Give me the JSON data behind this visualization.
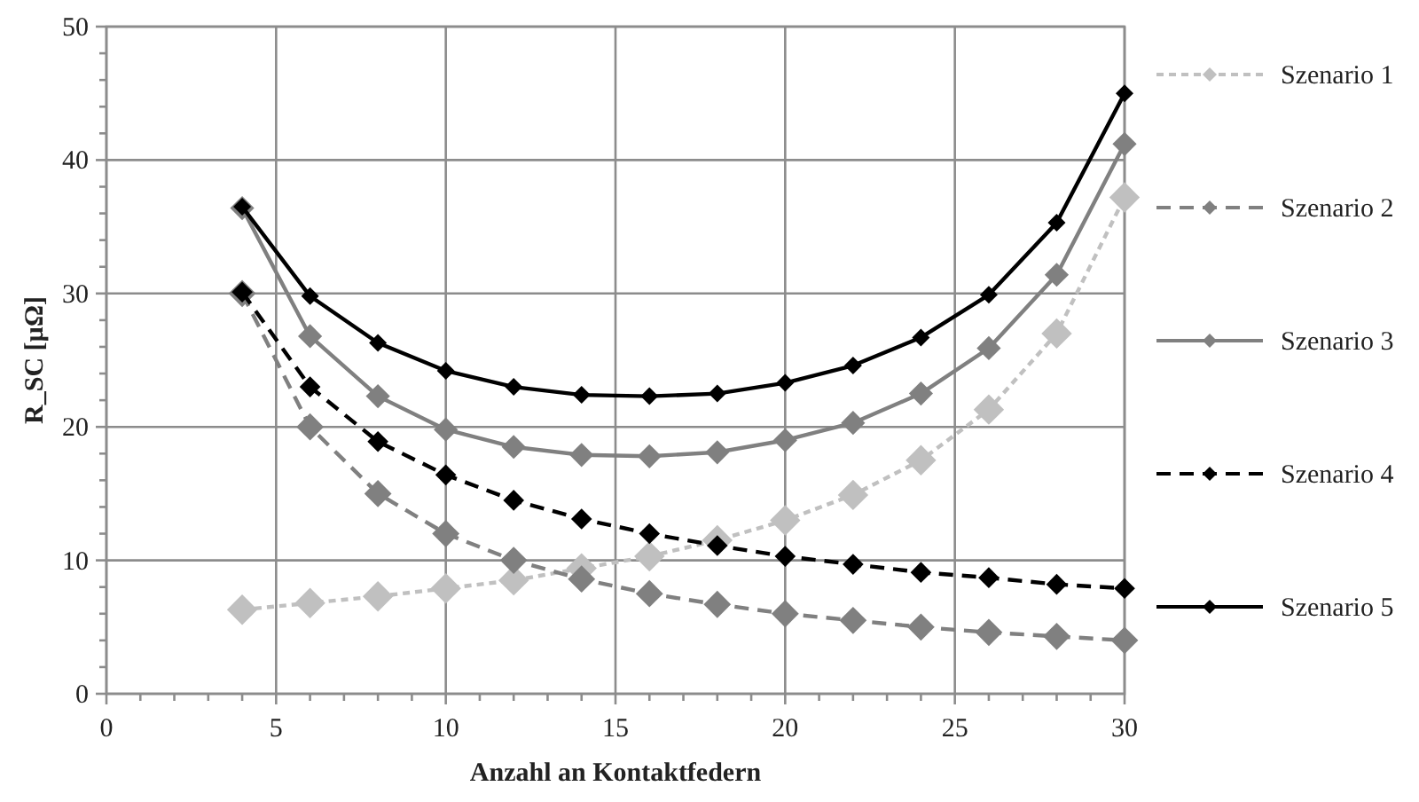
{
  "chart_data": {
    "type": "line",
    "xlabel": "Anzahl an Kontaktfedern",
    "ylabel": "R_SC [µΩ]",
    "x": [
      4,
      6,
      8,
      10,
      12,
      14,
      16,
      18,
      20,
      22,
      24,
      26,
      28,
      30
    ],
    "xlim": [
      0,
      30
    ],
    "ylim": [
      0,
      50
    ],
    "xticks": [
      0,
      {
        "value": 1,
        "label": null
      },
      {
        "value": 2,
        "label": null
      },
      {
        "value": 3,
        "label": null
      },
      {
        "value": 4,
        "label": null
      },
      5,
      {
        "value": 6,
        "label": null
      },
      {
        "value": 7,
        "label": null
      },
      {
        "value": 8,
        "label": null
      },
      {
        "value": 9,
        "label": null
      },
      10,
      {
        "value": 11,
        "label": null
      },
      {
        "value": 12,
        "label": null
      },
      {
        "value": 13,
        "label": null
      },
      {
        "value": 14,
        "label": null
      },
      15,
      {
        "value": 16,
        "label": null
      },
      {
        "value": 17,
        "label": null
      },
      {
        "value": 18,
        "label": null
      },
      {
        "value": 19,
        "label": null
      },
      20,
      {
        "value": 21,
        "label": null
      },
      {
        "value": 22,
        "label": null
      },
      {
        "value": 23,
        "label": null
      },
      {
        "value": 24,
        "label": null
      },
      25,
      {
        "value": 26,
        "label": null
      },
      {
        "value": 27,
        "label": null
      },
      {
        "value": 28,
        "label": null
      },
      {
        "value": 29,
        "label": null
      },
      30
    ],
    "yticks": [
      0,
      {
        "value": 2,
        "label": null
      },
      {
        "value": 4,
        "label": null
      },
      {
        "value": 6,
        "label": null
      },
      {
        "value": 8,
        "label": null
      },
      10,
      {
        "value": 12,
        "label": null
      },
      {
        "value": 14,
        "label": null
      },
      {
        "value": 16,
        "label": null
      },
      {
        "value": 18,
        "label": null
      },
      20,
      {
        "value": 22,
        "label": null
      },
      {
        "value": 24,
        "label": null
      },
      {
        "value": 26,
        "label": null
      },
      {
        "value": 28,
        "label": null
      },
      30,
      {
        "value": 32,
        "label": null
      },
      {
        "value": 34,
        "label": null
      },
      {
        "value": 36,
        "label": null
      },
      {
        "value": 38,
        "label": null
      },
      40,
      {
        "value": 42,
        "label": null
      },
      {
        "value": 44,
        "label": null
      },
      {
        "value": 46,
        "label": null
      },
      {
        "value": 48,
        "label": null
      },
      50
    ],
    "grid": true,
    "legend": "right",
    "marker": "diamond",
    "series": [
      {
        "name": "Szenario 1",
        "color": "#c0c0c0",
        "line_style": "dotted",
        "values": [
          6.3,
          6.8,
          7.3,
          7.9,
          8.5,
          9.4,
          10.3,
          11.5,
          13.0,
          14.9,
          17.5,
          21.3,
          27.0,
          37.2
        ]
      },
      {
        "name": "Szenario 2",
        "color": "#808080",
        "line_style": "dashed",
        "values": [
          30.0,
          20.0,
          15.0,
          12.0,
          10.0,
          8.6,
          7.5,
          6.7,
          6.0,
          5.5,
          5.0,
          4.6,
          4.3,
          4.0
        ]
      },
      {
        "name": "Szenario 3",
        "color": "#808080",
        "line_style": "solid",
        "values": [
          36.4,
          26.8,
          22.3,
          19.8,
          18.5,
          17.9,
          17.8,
          18.1,
          19.0,
          20.3,
          22.5,
          25.9,
          31.4,
          41.2
        ]
      },
      {
        "name": "Szenario 4",
        "color": "#000000",
        "line_style": "dashed",
        "values": [
          30.1,
          23.0,
          18.9,
          16.4,
          14.5,
          13.1,
          12.0,
          11.1,
          10.3,
          9.7,
          9.1,
          8.7,
          8.2,
          7.9
        ]
      },
      {
        "name": "Szenario 5",
        "color": "#000000",
        "line_style": "solid",
        "values": [
          36.5,
          29.8,
          26.3,
          24.2,
          23.0,
          22.4,
          22.3,
          22.5,
          23.3,
          24.6,
          26.7,
          29.9,
          35.3,
          45.0
        ]
      }
    ]
  }
}
